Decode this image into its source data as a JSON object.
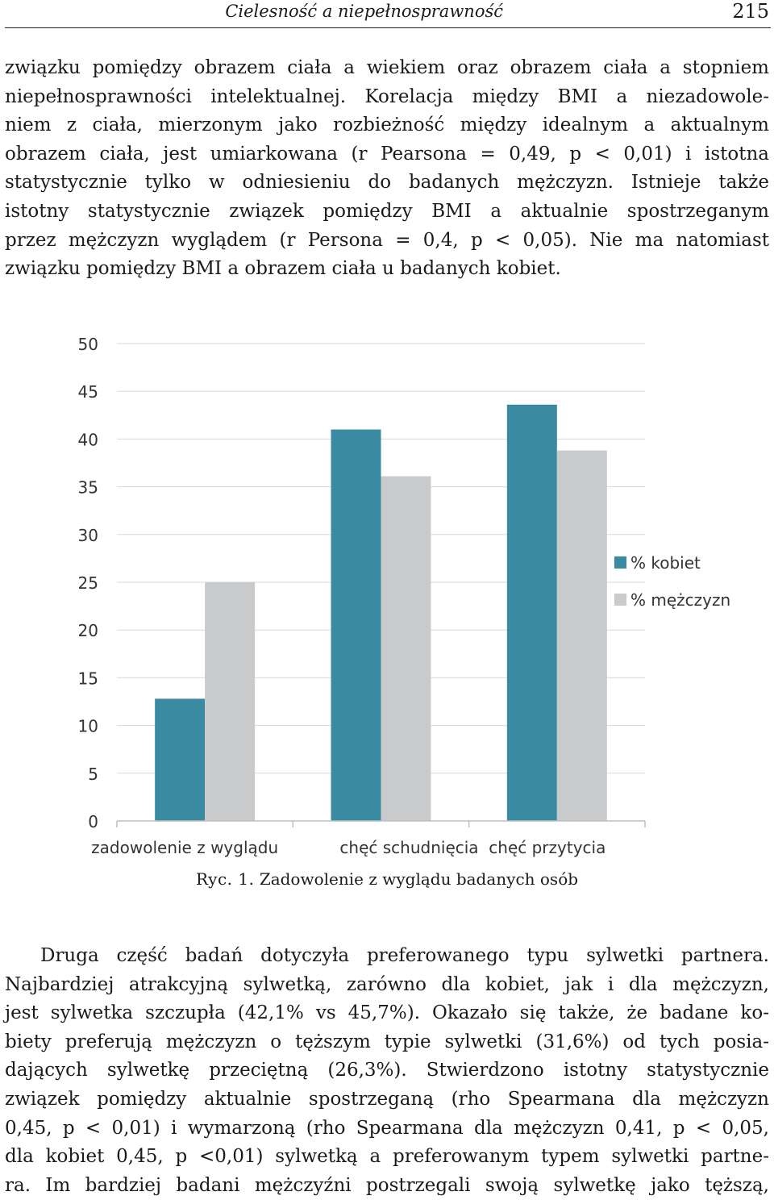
{
  "header": {
    "running_title": "Cielesność a niepełnosprawność",
    "page_number": "215"
  },
  "paragraph_top": {
    "lines": [
      "związku pomiędzy obrazem ciała a wiekiem oraz obrazem ciała a stopniem",
      "niepełnosprawności intelektualnej. Korelacja między BMI a niezadowole-",
      "niem z ciała, mierzonym jako rozbieżność między idealnym a aktualnym",
      "obrazem ciała, jest umiarkowana (r Pearsona = 0,49, p < 0,01) i istotna",
      "statystycznie tylko w odniesieniu do badanych mężczyzn. Istnieje także",
      "istotny statystycznie związek pomiędzy BMI a aktualnie spostrzeganym",
      "przez mężczyzn wyglądem (r Persona = 0,4, p < 0,05). Nie ma natomiast",
      "związku pomiędzy BMI a obrazem ciała u badanych kobiet."
    ]
  },
  "chart_data": {
    "type": "bar",
    "categories": [
      "zadowolenie z wyglądu",
      "chęć schudnięcia",
      "chęć przytycia"
    ],
    "series": [
      {
        "name": "% kobiet",
        "values": [
          12.8,
          41.0,
          43.6
        ],
        "color": "#3a8aa2"
      },
      {
        "name": "% mężczyzn",
        "values": [
          25.0,
          36.1,
          38.8
        ],
        "color": "#c9cacc"
      }
    ],
    "y_ticks": [
      "50",
      "45",
      "40",
      "35",
      "30",
      "25",
      "20",
      "15",
      "10",
      "5",
      "0"
    ],
    "ylim": [
      0,
      50
    ],
    "grid": true,
    "legend_position": "right",
    "title": "",
    "xlabel": "",
    "ylabel": ""
  },
  "caption": {
    "lead": "Ryc. 1.",
    "text": "Zadowolenie z wyglądu badanych osób"
  },
  "paragraph_bottom": {
    "lines": [
      "Druga część badań dotyczyła preferowanego typu sylwetki partnera.",
      "Najbardziej atrakcyjną sylwetką, zarówno dla kobiet, jak i dla mężczyzn,",
      "jest sylwetka szczupła (42,1% vs 45,7%). Okazało się także, że badane ko-",
      "biety preferują mężczyzn o tęższym typie sylwetki (31,6%) od tych posia-",
      "dających sylwetkę przeciętną (26,3%). Stwierdzono istotny statystycznie",
      "związek pomiędzy aktualnie spostrzeganą (rho Spearmana dla mężczyzn",
      "0,45, p < 0,01) i wymarzoną (rho Spearmana dla mężczyzn 0,41, p < 0,05,",
      "dla kobiet 0,45, p <0,01) sylwetką a preferowanym typem sylwetki partne-",
      "ra. Im bardziej badani mężczyźni postrzegali swoją sylwetkę jako tęższą,"
    ]
  }
}
